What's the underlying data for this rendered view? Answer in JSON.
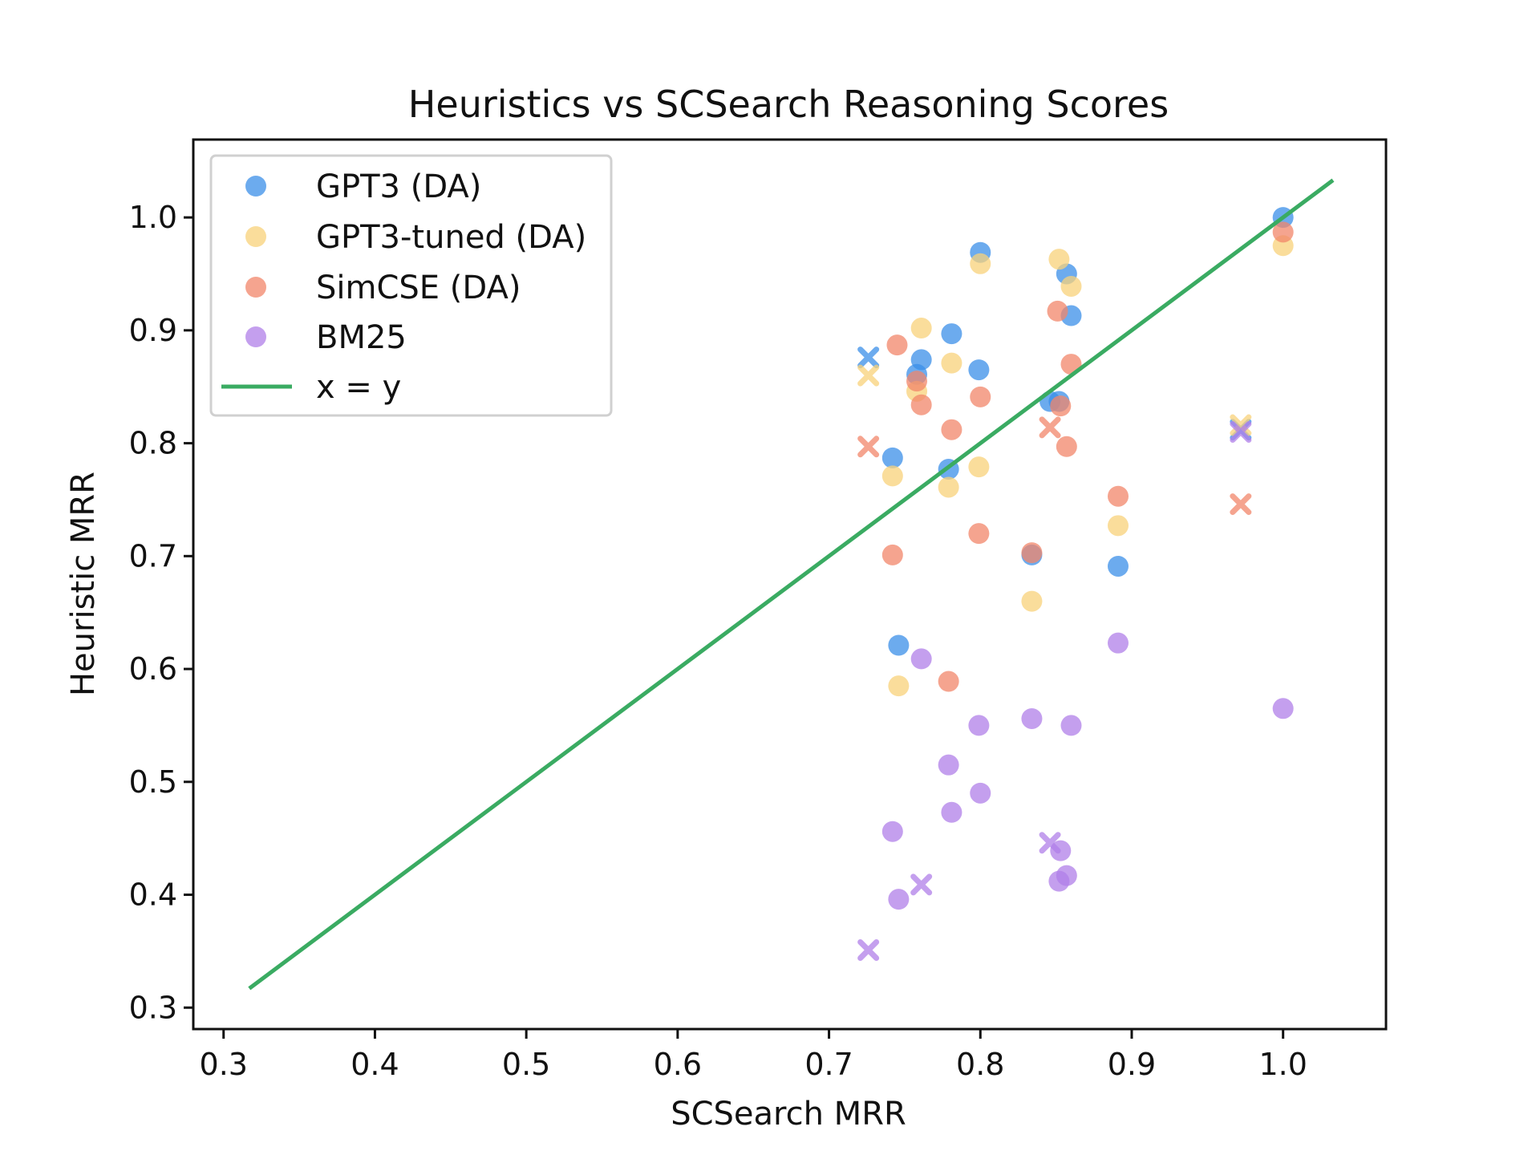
{
  "chart_data": {
    "type": "scatter",
    "title": "Heuristics vs SCSearch Reasoning Scores",
    "xlabel": "SCSearch MRR",
    "ylabel": "Heuristic MRR",
    "xlim": [
      0.28,
      1.068
    ],
    "ylim": [
      0.281,
      1.069
    ],
    "xticks": [
      "0.3",
      "0.4",
      "0.5",
      "0.6",
      "0.7",
      "0.8",
      "0.9",
      "1.0"
    ],
    "yticks": [
      "0.3",
      "0.4",
      "0.5",
      "0.6",
      "0.7",
      "0.8",
      "0.9",
      "1.0"
    ],
    "grid": false,
    "legend_position": "upper-left",
    "reference_line": {
      "name": "x = y",
      "color": "#3aab62",
      "x": [
        0.317,
        1.033
      ],
      "y": [
        0.317,
        1.033
      ]
    },
    "series": [
      {
        "name": "GPT3 (DA)",
        "color": "#3b8fe8",
        "points": [
          {
            "x": 0.726,
            "y": 0.876,
            "marker": "x"
          },
          {
            "x": 0.742,
            "y": 0.787,
            "marker": "o"
          },
          {
            "x": 0.746,
            "y": 0.621,
            "marker": "o"
          },
          {
            "x": 0.758,
            "y": 0.861,
            "marker": "o"
          },
          {
            "x": 0.761,
            "y": 0.874,
            "marker": "o"
          },
          {
            "x": 0.779,
            "y": 0.777,
            "marker": "o"
          },
          {
            "x": 0.781,
            "y": 0.897,
            "marker": "o"
          },
          {
            "x": 0.799,
            "y": 0.865,
            "marker": "o"
          },
          {
            "x": 0.8,
            "y": 0.969,
            "marker": "o"
          },
          {
            "x": 0.834,
            "y": 0.701,
            "marker": "o"
          },
          {
            "x": 0.846,
            "y": 0.837,
            "marker": "o"
          },
          {
            "x": 0.852,
            "y": 0.837,
            "marker": "o"
          },
          {
            "x": 0.857,
            "y": 0.95,
            "marker": "o"
          },
          {
            "x": 0.86,
            "y": 0.913,
            "marker": "o"
          },
          {
            "x": 0.891,
            "y": 0.691,
            "marker": "o"
          },
          {
            "x": 0.972,
            "y": 0.812,
            "marker": "x"
          },
          {
            "x": 1.0,
            "y": 1.0,
            "marker": "o"
          }
        ]
      },
      {
        "name": "GPT3-tuned (DA)",
        "color": "#f8d27a",
        "points": [
          {
            "x": 0.726,
            "y": 0.86,
            "marker": "x"
          },
          {
            "x": 0.742,
            "y": 0.771,
            "marker": "o"
          },
          {
            "x": 0.746,
            "y": 0.585,
            "marker": "o"
          },
          {
            "x": 0.758,
            "y": 0.846,
            "marker": "o"
          },
          {
            "x": 0.761,
            "y": 0.902,
            "marker": "o"
          },
          {
            "x": 0.779,
            "y": 0.761,
            "marker": "o"
          },
          {
            "x": 0.781,
            "y": 0.871,
            "marker": "o"
          },
          {
            "x": 0.799,
            "y": 0.779,
            "marker": "o"
          },
          {
            "x": 0.8,
            "y": 0.959,
            "marker": "o"
          },
          {
            "x": 0.834,
            "y": 0.66,
            "marker": "o"
          },
          {
            "x": 0.852,
            "y": 0.963,
            "marker": "o"
          },
          {
            "x": 0.86,
            "y": 0.939,
            "marker": "o"
          },
          {
            "x": 0.891,
            "y": 0.727,
            "marker": "o"
          },
          {
            "x": 0.972,
            "y": 0.816,
            "marker": "x"
          },
          {
            "x": 1.0,
            "y": 0.975,
            "marker": "o"
          }
        ]
      },
      {
        "name": "SimCSE (DA)",
        "color": "#f2866a",
        "points": [
          {
            "x": 0.726,
            "y": 0.797,
            "marker": "x"
          },
          {
            "x": 0.742,
            "y": 0.701,
            "marker": "o"
          },
          {
            "x": 0.745,
            "y": 0.887,
            "marker": "o"
          },
          {
            "x": 0.758,
            "y": 0.855,
            "marker": "o"
          },
          {
            "x": 0.761,
            "y": 0.834,
            "marker": "o"
          },
          {
            "x": 0.779,
            "y": 0.589,
            "marker": "o"
          },
          {
            "x": 0.781,
            "y": 0.812,
            "marker": "o"
          },
          {
            "x": 0.799,
            "y": 0.72,
            "marker": "o"
          },
          {
            "x": 0.8,
            "y": 0.841,
            "marker": "o"
          },
          {
            "x": 0.834,
            "y": 0.703,
            "marker": "o"
          },
          {
            "x": 0.846,
            "y": 0.814,
            "marker": "x"
          },
          {
            "x": 0.851,
            "y": 0.917,
            "marker": "o"
          },
          {
            "x": 0.853,
            "y": 0.833,
            "marker": "o"
          },
          {
            "x": 0.857,
            "y": 0.797,
            "marker": "o"
          },
          {
            "x": 0.86,
            "y": 0.87,
            "marker": "o"
          },
          {
            "x": 0.891,
            "y": 0.753,
            "marker": "o"
          },
          {
            "x": 0.972,
            "y": 0.746,
            "marker": "x"
          },
          {
            "x": 1.0,
            "y": 0.987,
            "marker": "o"
          }
        ]
      },
      {
        "name": "BM25",
        "color": "#b07fe8",
        "points": [
          {
            "x": 0.726,
            "y": 0.351,
            "marker": "x"
          },
          {
            "x": 0.742,
            "y": 0.456,
            "marker": "o"
          },
          {
            "x": 0.746,
            "y": 0.396,
            "marker": "o"
          },
          {
            "x": 0.761,
            "y": 0.609,
            "marker": "o"
          },
          {
            "x": 0.761,
            "y": 0.409,
            "marker": "x"
          },
          {
            "x": 0.779,
            "y": 0.515,
            "marker": "o"
          },
          {
            "x": 0.781,
            "y": 0.473,
            "marker": "o"
          },
          {
            "x": 0.799,
            "y": 0.55,
            "marker": "o"
          },
          {
            "x": 0.8,
            "y": 0.49,
            "marker": "o"
          },
          {
            "x": 0.834,
            "y": 0.556,
            "marker": "o"
          },
          {
            "x": 0.846,
            "y": 0.446,
            "marker": "x"
          },
          {
            "x": 0.852,
            "y": 0.412,
            "marker": "o"
          },
          {
            "x": 0.853,
            "y": 0.439,
            "marker": "o"
          },
          {
            "x": 0.857,
            "y": 0.417,
            "marker": "o"
          },
          {
            "x": 0.86,
            "y": 0.55,
            "marker": "o"
          },
          {
            "x": 0.891,
            "y": 0.623,
            "marker": "o"
          },
          {
            "x": 0.972,
            "y": 0.81,
            "marker": "x"
          },
          {
            "x": 1.0,
            "y": 0.565,
            "marker": "o"
          }
        ]
      }
    ]
  }
}
